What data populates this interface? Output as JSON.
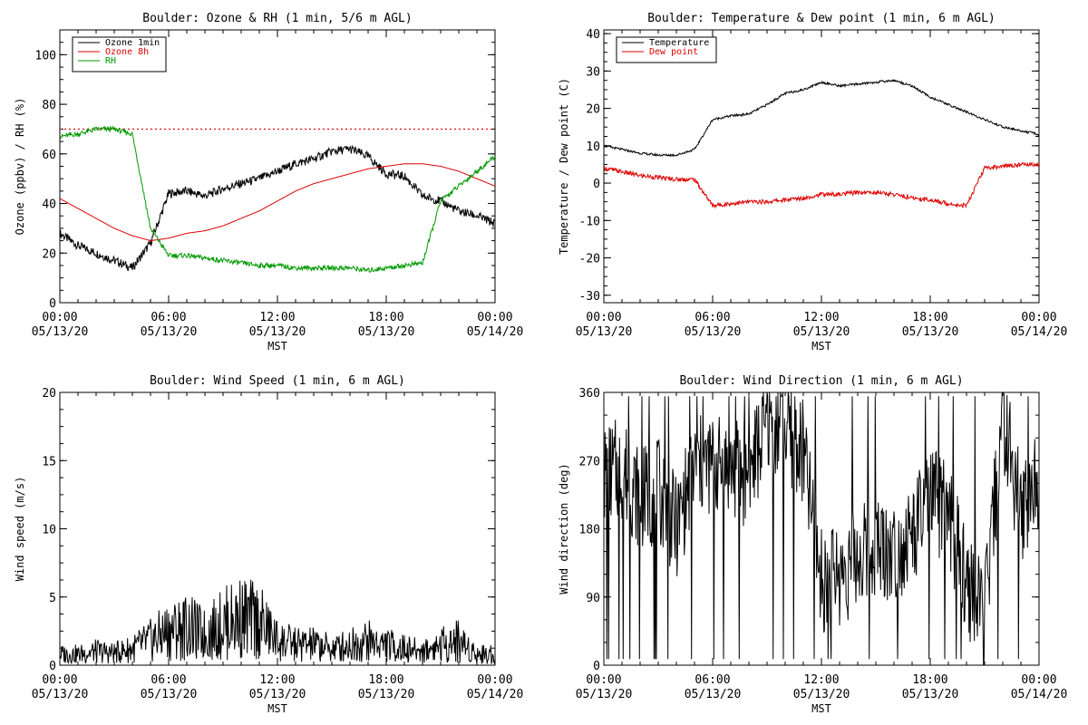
{
  "charts": [
    {
      "title": "Boulder: Ozone & RH (1 min, 5/6 m AGL)",
      "ylabel": "Ozone (ppbv) / RH (%)",
      "xlabel": "MST",
      "ylim": [
        0,
        110
      ],
      "yticks": [
        "0",
        "20",
        "40",
        "60",
        "80",
        "100"
      ],
      "legend": {
        "placement": "top-left",
        "entries": [
          {
            "label": "Ozone 1min",
            "color": "#000000"
          },
          {
            "label": "Ozone 8h",
            "color": "#dd0000"
          },
          {
            "label": "RH",
            "color": "#009900"
          }
        ]
      },
      "reference_line": {
        "y": 70,
        "color": "#dd0000",
        "style": "dotted"
      }
    },
    {
      "title": "Boulder: Temperature & Dew point (1 min, 6 m AGL)",
      "ylabel": "Temperature / Dew point (C)",
      "xlabel": "MST",
      "ylim": [
        -32,
        41
      ],
      "yticks": [
        "-30",
        "-20",
        "-10",
        "0",
        "10",
        "20",
        "30",
        "40"
      ],
      "legend": {
        "placement": "top-left",
        "entries": [
          {
            "label": "Temperature",
            "color": "#000000"
          },
          {
            "label": "Dew point",
            "color": "#dd0000"
          }
        ]
      }
    },
    {
      "title": "Boulder: Wind Speed (1 min, 6 m AGL)",
      "ylabel": "Wind speed (m/s)",
      "xlabel": "MST",
      "ylim": [
        0,
        20
      ],
      "yticks": [
        "0",
        "5",
        "10",
        "15",
        "20"
      ]
    },
    {
      "title": "Boulder: Wind Direction (1 min, 6 m AGL)",
      "ylabel": "Wind direction (deg)",
      "xlabel": "MST",
      "ylim": [
        0,
        360
      ],
      "yticks": [
        "0",
        "90",
        "180",
        "270",
        "360"
      ]
    }
  ],
  "xticks": [
    {
      "time": "00:00",
      "date": "05/13/20"
    },
    {
      "time": "06:00",
      "date": "05/13/20"
    },
    {
      "time": "12:00",
      "date": "05/13/20"
    },
    {
      "time": "18:00",
      "date": "05/13/20"
    },
    {
      "time": "00:00",
      "date": "05/14/20"
    }
  ],
  "chart_data": [
    {
      "type": "line",
      "title": "Boulder: Ozone & RH (1 min, 5/6 m AGL)",
      "xlabel": "MST",
      "ylabel": "Ozone (ppbv) / RH (%)",
      "xlim": [
        "05/13/20 00:00",
        "05/14/20 00:00"
      ],
      "ylim": [
        0,
        110
      ],
      "x": [
        "05/13/20 00:00",
        "05/13/20 01:00",
        "05/13/20 02:00",
        "05/13/20 03:00",
        "05/13/20 04:00",
        "05/13/20 05:00",
        "05/13/20 06:00",
        "05/13/20 07:00",
        "05/13/20 08:00",
        "05/13/20 09:00",
        "05/13/20 10:00",
        "05/13/20 11:00",
        "05/13/20 12:00",
        "05/13/20 13:00",
        "05/13/20 14:00",
        "05/13/20 15:00",
        "05/13/20 16:00",
        "05/13/20 17:00",
        "05/13/20 18:00",
        "05/13/20 19:00",
        "05/13/20 20:00",
        "05/13/20 21:00",
        "05/13/20 22:00",
        "05/13/20 23:00",
        "05/14/20 00:00"
      ],
      "series": [
        {
          "name": "Ozone 1min",
          "color": "#000000",
          "values": [
            28,
            23,
            20,
            17,
            14,
            24,
            44,
            45,
            43,
            46,
            48,
            50,
            53,
            56,
            58,
            61,
            62,
            59,
            52,
            51,
            43,
            41,
            37,
            35,
            32
          ]
        },
        {
          "name": "Ozone 8h",
          "color": "#dd0000",
          "values": [
            42,
            38,
            34,
            30,
            27,
            25,
            26,
            28,
            29,
            31,
            34,
            37,
            41,
            45,
            48,
            50,
            52,
            54,
            55,
            56,
            56,
            55,
            53,
            50,
            47
          ]
        },
        {
          "name": "RH",
          "color": "#009900",
          "values": [
            67,
            68,
            70,
            70,
            68,
            30,
            19,
            19,
            18,
            17,
            16,
            15,
            15,
            14,
            14,
            14,
            14,
            13,
            14,
            15,
            16,
            41,
            47,
            53,
            59
          ]
        }
      ]
    },
    {
      "type": "line",
      "title": "Boulder: Temperature & Dew point (1 min, 6 m AGL)",
      "xlabel": "MST",
      "ylabel": "Temperature / Dew point (C)",
      "xlim": [
        "05/13/20 00:00",
        "05/14/20 00:00"
      ],
      "ylim": [
        -32,
        41
      ],
      "x": [
        "05/13/20 00:00",
        "05/13/20 01:00",
        "05/13/20 02:00",
        "05/13/20 03:00",
        "05/13/20 04:00",
        "05/13/20 05:00",
        "05/13/20 06:00",
        "05/13/20 07:00",
        "05/13/20 08:00",
        "05/13/20 09:00",
        "05/13/20 10:00",
        "05/13/20 11:00",
        "05/13/20 12:00",
        "05/13/20 13:00",
        "05/13/20 14:00",
        "05/13/20 15:00",
        "05/13/20 16:00",
        "05/13/20 17:00",
        "05/13/20 18:00",
        "05/13/20 19:00",
        "05/13/20 20:00",
        "05/13/20 21:00",
        "05/13/20 22:00",
        "05/13/20 23:00",
        "05/14/20 00:00"
      ],
      "series": [
        {
          "name": "Temperature",
          "color": "#000000",
          "values": [
            10,
            9,
            8,
            7.5,
            7.5,
            9,
            17,
            18,
            18.5,
            21,
            24,
            25,
            27,
            26,
            26.5,
            27,
            27.5,
            26,
            23,
            21,
            19,
            17,
            15,
            14,
            13
          ]
        },
        {
          "name": "Dew point",
          "color": "#dd0000",
          "values": [
            4,
            3,
            2,
            1.5,
            1,
            1,
            -6,
            -5.5,
            -5,
            -5,
            -4.5,
            -4,
            -3,
            -3,
            -2.5,
            -2.5,
            -3,
            -4,
            -4.5,
            -5.5,
            -6,
            4,
            4.5,
            5,
            5
          ]
        }
      ]
    },
    {
      "type": "line",
      "title": "Boulder: Wind Speed (1 min, 6 m AGL)",
      "xlabel": "MST",
      "ylabel": "Wind speed (m/s)",
      "xlim": [
        "05/13/20 00:00",
        "05/14/20 00:00"
      ],
      "ylim": [
        0,
        20
      ],
      "x": [
        "05/13/20 00:00",
        "05/13/20 01:00",
        "05/13/20 02:00",
        "05/13/20 03:00",
        "05/13/20 04:00",
        "05/13/20 05:00",
        "05/13/20 06:00",
        "05/13/20 07:00",
        "05/13/20 08:00",
        "05/13/20 09:00",
        "05/13/20 10:00",
        "05/13/20 11:00",
        "05/13/20 12:00",
        "05/13/20 13:00",
        "05/13/20 14:00",
        "05/13/20 15:00",
        "05/13/20 16:00",
        "05/13/20 17:00",
        "05/13/20 18:00",
        "05/13/20 19:00",
        "05/13/20 20:00",
        "05/13/20 21:00",
        "05/13/20 22:00",
        "05/13/20 23:00",
        "05/14/20 00:00"
      ],
      "series": [
        {
          "name": "",
          "color": "#000000",
          "values": [
            0.8,
            0.8,
            1.0,
            0.9,
            1.2,
            1.8,
            2.5,
            2.8,
            2.2,
            3.0,
            3.5,
            3.2,
            1.8,
            1.5,
            1.5,
            1.2,
            1.5,
            1.8,
            1.5,
            1.2,
            1.0,
            1.5,
            1.8,
            0.8,
            0.8
          ]
        }
      ]
    },
    {
      "type": "line",
      "title": "Boulder: Wind Direction (1 min, 6 m AGL)",
      "xlabel": "MST",
      "ylabel": "Wind direction (deg)",
      "xlim": [
        "05/13/20 00:00",
        "05/14/20 00:00"
      ],
      "ylim": [
        0,
        360
      ],
      "x": [
        "05/13/20 00:00",
        "05/13/20 01:00",
        "05/13/20 02:00",
        "05/13/20 03:00",
        "05/13/20 04:00",
        "05/13/20 05:00",
        "05/13/20 06:00",
        "05/13/20 07:00",
        "05/13/20 08:00",
        "05/13/20 09:00",
        "05/13/20 10:00",
        "05/13/20 11:00",
        "05/13/20 12:00",
        "05/13/20 13:00",
        "05/13/20 14:00",
        "05/13/20 15:00",
        "05/13/20 16:00",
        "05/13/20 17:00",
        "05/13/20 18:00",
        "05/13/20 19:00",
        "05/13/20 20:00",
        "05/13/20 21:00",
        "05/13/20 22:00",
        "05/13/20 23:00",
        "05/14/20 00:00"
      ],
      "series": [
        {
          "name": "",
          "color": "#000000",
          "values": [
            250,
            260,
            220,
            230,
            180,
            260,
            265,
            260,
            250,
            320,
            310,
            280,
            110,
            120,
            140,
            160,
            150,
            170,
            220,
            200,
            110,
            60,
            330,
            200,
            250
          ]
        }
      ]
    }
  ]
}
